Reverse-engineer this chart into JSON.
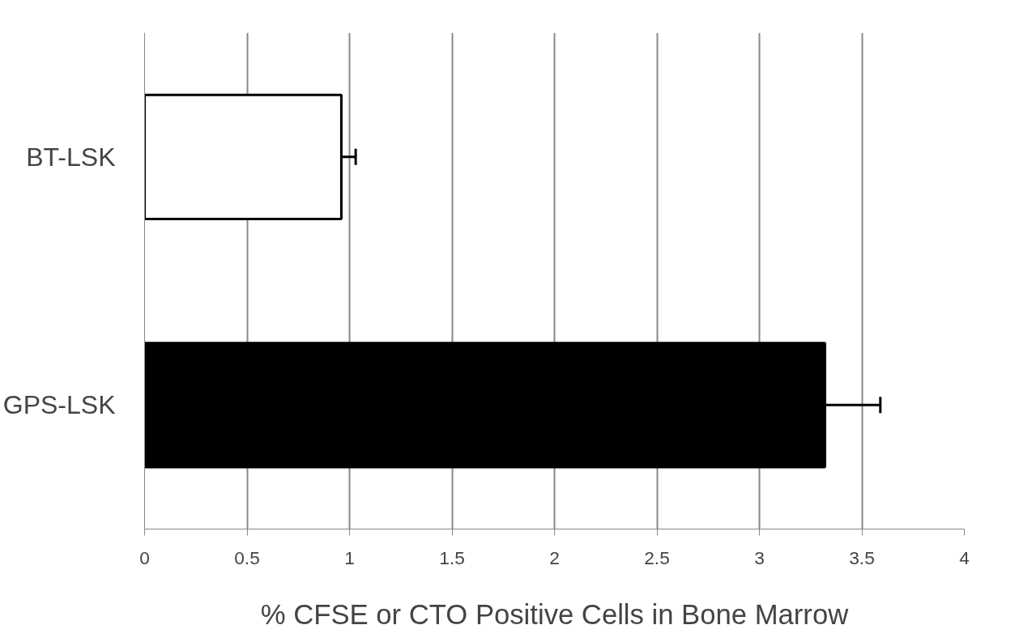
{
  "chart_data": {
    "type": "bar",
    "orientation": "horizontal",
    "xlabel": "% CFSE or CTO Positive Cells in Bone Marrow",
    "categories": [
      "BT-LSK",
      "GPS-LSK"
    ],
    "values": [
      0.96,
      3.32
    ],
    "errors": [
      0.07,
      0.27
    ],
    "colors": [
      "#ffffff",
      "#000000"
    ],
    "xlim": [
      0,
      4
    ],
    "xticks": [
      0,
      0.5,
      1,
      1.5,
      2,
      2.5,
      3,
      3.5,
      4
    ],
    "grid": "x"
  }
}
